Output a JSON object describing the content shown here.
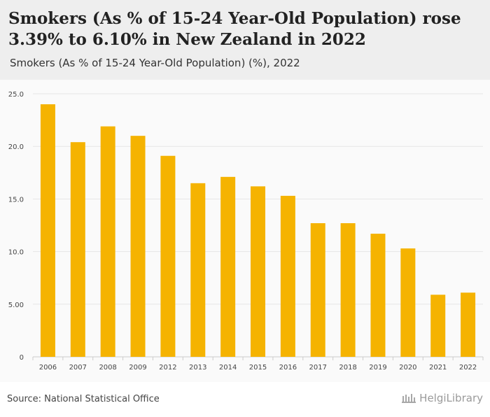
{
  "header": {
    "title": "Smokers (As % of 15-24 Year-Old Population) rose 3.39% to 6.10% in New Zealand in 2022",
    "subtitle": "Smokers (As % of 15-24 Year-Old Population) (%), 2022"
  },
  "footer": {
    "source": "Source: National Statistical Office",
    "logo_text": "HelgiLibrary"
  },
  "colors": {
    "bar": "#f5b301",
    "header_bg": "#eeeeee",
    "plot_bg": "#fafafa",
    "grid": "#e6e6e6"
  },
  "chart_data": {
    "type": "bar",
    "categories": [
      "2006",
      "2007",
      "2008",
      "2009",
      "2012",
      "2013",
      "2014",
      "2015",
      "2016",
      "2017",
      "2018",
      "2019",
      "2020",
      "2021",
      "2022"
    ],
    "values": [
      24.0,
      20.4,
      21.9,
      21.0,
      19.1,
      16.5,
      17.1,
      16.2,
      15.3,
      12.7,
      12.7,
      11.7,
      10.3,
      5.9,
      6.1
    ],
    "yticks": [
      0,
      5,
      10,
      15,
      20,
      25
    ],
    "ytick_labels": [
      "0",
      "5.00",
      "10.0",
      "15.0",
      "20.0",
      "25.0"
    ],
    "ylim": [
      0,
      25
    ],
    "grid": true,
    "legend": "none"
  }
}
